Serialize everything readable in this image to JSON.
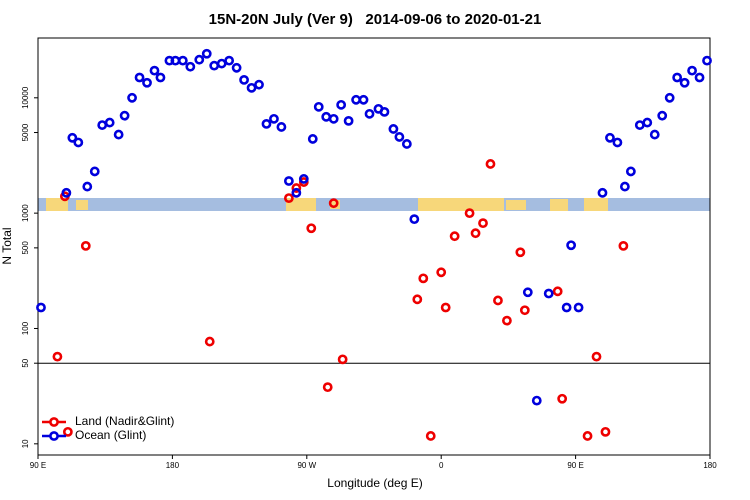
{
  "chart_data": {
    "type": "scatter",
    "title": "15N-20N July (Ver 9)   2014-09-06 to 2020-01-21",
    "xlabel": "Longitude (deg E)",
    "ylabel": "N Total",
    "log_y": true,
    "xlim": [
      90,
      540
    ],
    "ylim": [
      8,
      33000
    ],
    "xticks": [
      {
        "value": 90,
        "label": "90 E"
      },
      180,
      {
        "value": 270,
        "label": "90 W"
      },
      {
        "value": 360,
        "label": "0"
      },
      {
        "value": 450,
        "label": "90 E"
      },
      {
        "value": 540,
        "label": "180"
      }
    ],
    "yticks": [
      10,
      50,
      100,
      500,
      1000,
      5000,
      10000
    ],
    "reference_line": 50,
    "legend": "bottom-left",
    "series": [
      {
        "name": "Land (Nadir&Glint)",
        "color": "#ee0000",
        "x": [
          108,
          103,
          110,
          122,
          205,
          258,
          263,
          268,
          273,
          284,
          288,
          294,
          344,
          348,
          353,
          360,
          363,
          369,
          379,
          383,
          388,
          393,
          398,
          404,
          413,
          416,
          438,
          441,
          458,
          464,
          470,
          482
        ],
        "values": [
          1400,
          57,
          12.7,
          520,
          77,
          1350,
          1650,
          1860,
          740,
          31,
          1220,
          54,
          179,
          272,
          11.7,
          307,
          152,
          631,
          1000,
          670,
          819,
          2670,
          175,
          117,
          458,
          144,
          210,
          24.6,
          11.7,
          57,
          12.7,
          520
        ]
      },
      {
        "name": "Ocean (Glint)",
        "color": "#0000dd",
        "x": [
          92,
          109,
          113,
          117,
          123,
          128,
          133,
          138,
          144,
          148,
          153,
          158,
          163,
          168,
          172,
          178,
          182,
          187,
          192,
          198,
          203,
          208,
          213,
          218,
          223,
          228,
          233,
          238,
          243,
          248,
          253,
          258,
          263,
          268,
          274,
          278,
          283,
          288,
          293,
          298,
          303,
          308,
          312,
          318,
          322,
          328,
          332,
          337,
          342,
          418,
          424,
          432,
          447,
          444,
          452,
          468,
          473,
          478,
          483,
          487,
          493,
          498,
          503,
          508,
          513,
          518,
          523,
          528,
          533,
          538
        ],
        "values": [
          152,
          1500,
          4500,
          4100,
          1700,
          2300,
          5800,
          6100,
          4800,
          7000,
          10000,
          15000,
          13500,
          17200,
          15000,
          21000,
          21000,
          21000,
          18600,
          21400,
          24100,
          19000,
          19800,
          21000,
          18200,
          14300,
          12200,
          13000,
          5940,
          6570,
          5590,
          1900,
          1500,
          1980,
          4400,
          8350,
          6840,
          6570,
          8690,
          6310,
          9610,
          9610,
          7260,
          8020,
          7550,
          5370,
          4580,
          3980,
          887,
          206,
          23.7,
          201,
          527,
          152,
          152,
          1500,
          4500,
          4100,
          1700,
          2300,
          5800,
          6100,
          4800,
          7000,
          10000,
          15000,
          13500,
          17200,
          15000,
          21000
        ]
      }
    ]
  }
}
